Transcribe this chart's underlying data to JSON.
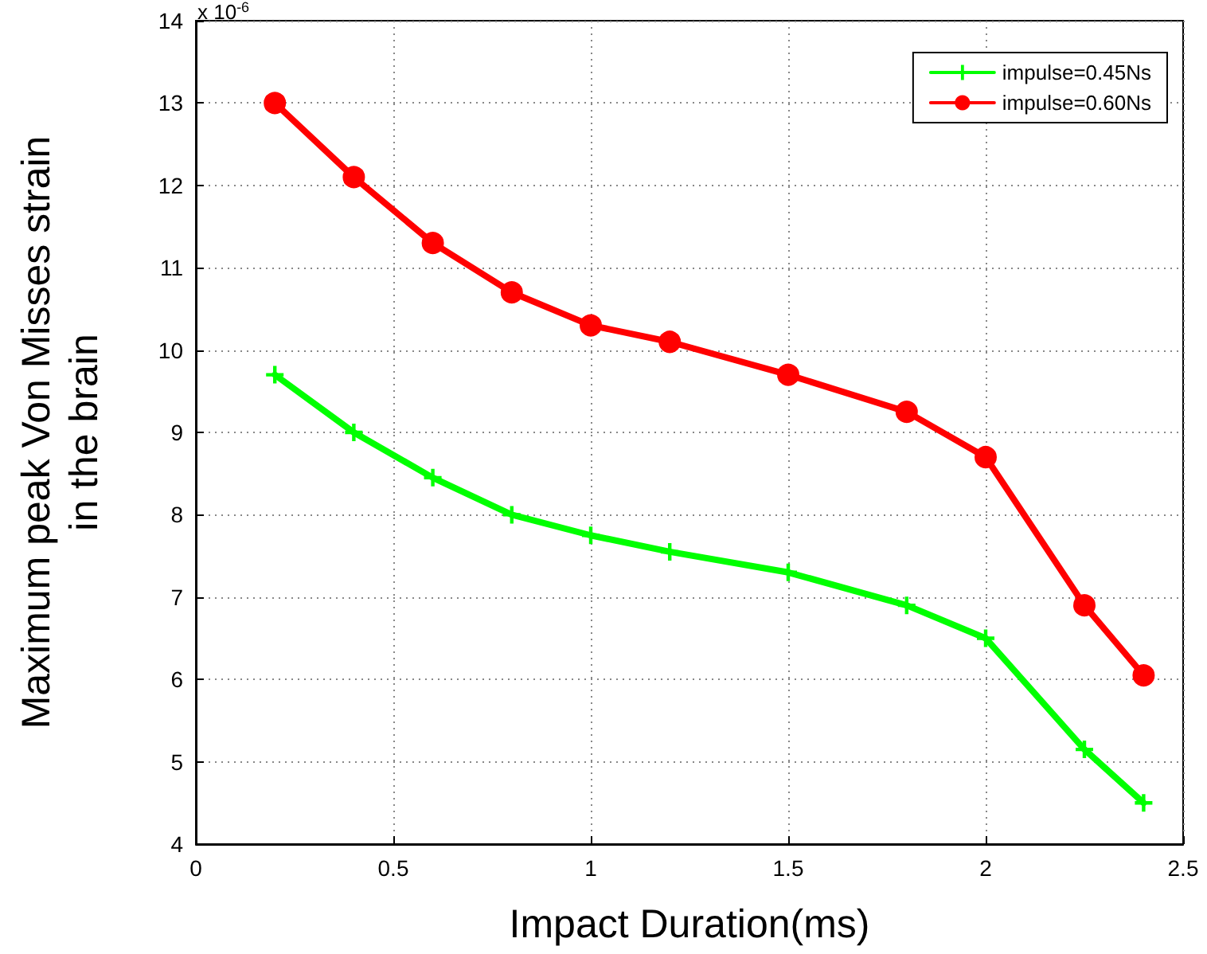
{
  "chart_data": {
    "type": "line",
    "xlabel": "Impact Duration(ms)",
    "ylabel": "Maximum peak Von Misses strain\nin the brain",
    "annotations": [
      "x 10$^{-6}$"
    ],
    "x": [
      0.2,
      0.4,
      0.6,
      0.8,
      1.0,
      1.2,
      1.5,
      1.8,
      2.0,
      2.25,
      2.4
    ],
    "series": [
      {
        "name": "impulse=0.45Ns",
        "color": "#00ff00",
        "marker": "cross",
        "values": [
          9.7,
          9.0,
          8.45,
          8.0,
          7.75,
          7.55,
          7.3,
          6.9,
          6.5,
          5.15,
          4.5
        ]
      },
      {
        "name": "impulse=0.60Ns",
        "color": "#ff0000",
        "marker": "circle",
        "values": [
          13.0,
          12.1,
          11.3,
          10.7,
          10.3,
          10.1,
          9.7,
          9.25,
          8.7,
          6.9,
          6.05
        ]
      }
    ],
    "xlim": [
      0,
      2.5
    ],
    "xticks": [
      0,
      0.5,
      1,
      1.5,
      2,
      2.5
    ],
    "ylim": [
      4,
      14
    ],
    "yticks": [
      4,
      5,
      6,
      7,
      8,
      9,
      10,
      11,
      12,
      13,
      14
    ],
    "grid": true,
    "legend": "top right",
    "line_style": "solid"
  }
}
